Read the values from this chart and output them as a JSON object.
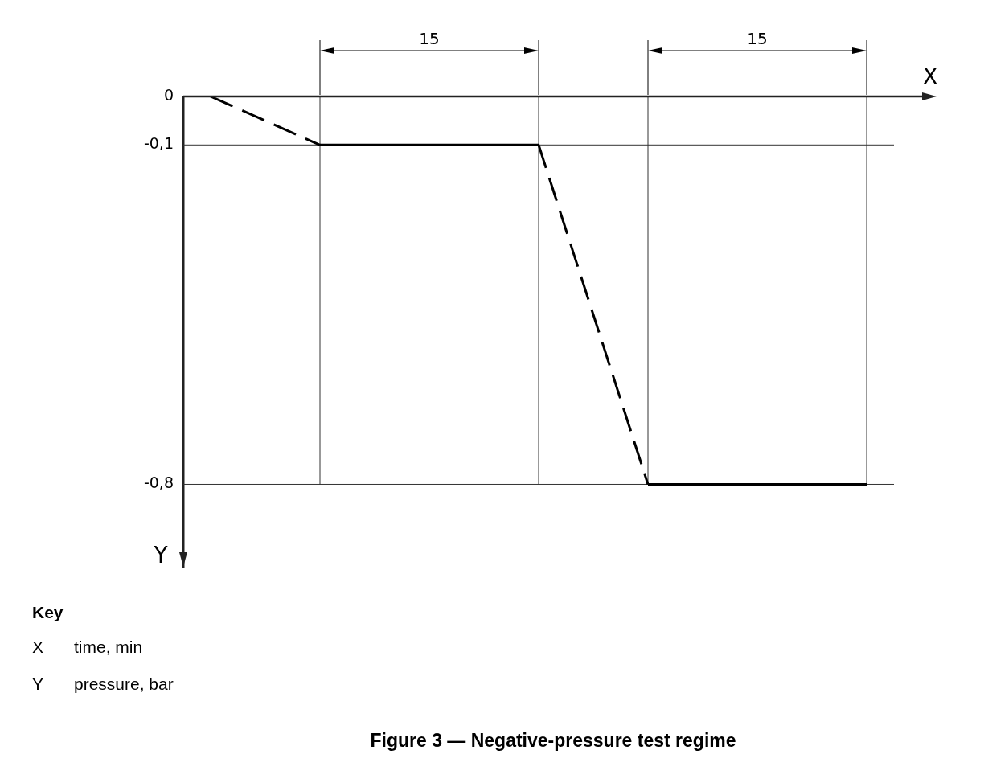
{
  "chart_data": {
    "type": "line",
    "title": "Figure 3 — Negative-pressure test regime",
    "xlabel": "X",
    "ylabel": "Y",
    "annotations": [
      "15",
      "15",
      "Key",
      "X",
      "time, min",
      "Y",
      "pressure, bar"
    ],
    "categories": [
      null,
      null,
      null,
      null,
      null,
      null,
      null,
      null,
      null,
      null,
      null,
      null,
      null
    ],
    "ylim": [
      -0.97,
      0
    ],
    "yticks": [
      {
        "value": 0,
        "label": "0"
      },
      {
        "value": -0.1,
        "label": "-0,1"
      },
      {
        "value": -0.8,
        "label": "-0,8"
      }
    ],
    "grid": true,
    "marker": "none",
    "series": [
      {
        "color": "#000000",
        "line_style": "dashed",
        "values": [
          0,
          -0.05,
          -0.1,
          null,
          null,
          null,
          null,
          null,
          null,
          null,
          null,
          null,
          null
        ]
      },
      {
        "color": "#000000",
        "line_style": "solid",
        "values": [
          null,
          null,
          -0.1,
          -0.1,
          -0.1,
          -0.1,
          -0.1,
          null,
          null,
          null,
          null,
          null,
          null
        ]
      },
      {
        "color": "#000000",
        "line_style": "dashed",
        "values": [
          null,
          null,
          null,
          null,
          null,
          null,
          -0.1,
          -0.45,
          -0.8,
          null,
          null,
          null,
          null
        ]
      },
      {
        "color": "#000000",
        "line_style": "solid",
        "values": [
          null,
          null,
          null,
          null,
          null,
          null,
          null,
          null,
          -0.8,
          -0.8,
          -0.8,
          -0.8,
          -0.8
        ]
      }
    ]
  }
}
